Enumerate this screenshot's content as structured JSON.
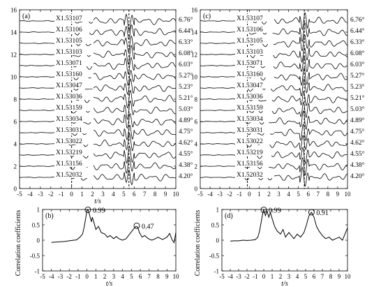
{
  "chart_data": [
    {
      "panel": "(a)",
      "type": "line",
      "xlabel": "t/s",
      "ylabel": "",
      "xlim": [
        -5,
        10
      ],
      "ylim": [
        0,
        16
      ],
      "xticks": [
        "-5",
        "-4",
        "-3",
        "-2",
        "-1",
        "0",
        "1",
        "2",
        "3",
        "4",
        "5",
        "6",
        "7",
        "8",
        "9",
        "10"
      ],
      "yticks": [
        "0",
        "2",
        "4",
        "6",
        "8",
        "10",
        "12",
        "14",
        "16"
      ],
      "vlines": [
        0,
        5.5
      ],
      "grid": false,
      "series": [
        {
          "name": "X1.53107",
          "offset": 15,
          "angle": "6.76°"
        },
        {
          "name": "X1.53106",
          "offset": 14,
          "angle": "6.44°"
        },
        {
          "name": "X1.53105",
          "offset": 13,
          "angle": "6.33°"
        },
        {
          "name": "X1.53103",
          "offset": 12,
          "angle": "6.08°"
        },
        {
          "name": "X1.53071",
          "offset": 11,
          "angle": "6.03°"
        },
        {
          "name": "X1.53160",
          "offset": 10,
          "angle": "5.27°"
        },
        {
          "name": "X1.53047",
          "offset": 9,
          "angle": "5.23°"
        },
        {
          "name": "X1.53036",
          "offset": 8,
          "angle": "5.21°"
        },
        {
          "name": "X1.53159",
          "offset": 7,
          "angle": "5.03°"
        },
        {
          "name": "X1.53034",
          "offset": 6,
          "angle": "4.89°"
        },
        {
          "name": "X1.53031",
          "offset": 5,
          "angle": "4.75°"
        },
        {
          "name": "X1.53022",
          "offset": 4,
          "angle": "4.62°"
        },
        {
          "name": "X1.53219",
          "offset": 3,
          "angle": "4.55°"
        },
        {
          "name": "X1.53156",
          "offset": 2,
          "angle": "4.38°"
        },
        {
          "name": "X1.52032",
          "offset": 1,
          "angle": "4.20°"
        }
      ]
    },
    {
      "panel": "(c)",
      "type": "line",
      "xlabel": "",
      "ylabel": "",
      "xlim": [
        -5,
        10
      ],
      "ylim": [
        0,
        16
      ],
      "xticks": [
        "-5",
        "-4",
        "-3",
        "-2",
        "-1",
        "0",
        "1",
        "2",
        "3",
        "4",
        "5",
        "6",
        "7",
        "8",
        "9",
        "10"
      ],
      "yticks": [
        "0",
        "2",
        "4",
        "6",
        "8",
        "10",
        "12",
        "14",
        "16"
      ],
      "vlines": [
        -0.2,
        5.6
      ],
      "grid": false,
      "series": [
        {
          "name": "X1.53107",
          "offset": 15,
          "angle": "6.76°"
        },
        {
          "name": "X1.53106",
          "offset": 14,
          "angle": "6.44°"
        },
        {
          "name": "X1.53105",
          "offset": 13,
          "angle": "6.33°"
        },
        {
          "name": "X1.53103",
          "offset": 12,
          "angle": "6.08°"
        },
        {
          "name": "X1.53071",
          "offset": 11,
          "angle": "6.03°"
        },
        {
          "name": "X1.53160",
          "offset": 10,
          "angle": "5.27°"
        },
        {
          "name": "X1.53047",
          "offset": 9,
          "angle": "5.23°"
        },
        {
          "name": "X1.53036",
          "offset": 8,
          "angle": "5.21°"
        },
        {
          "name": "X1.53159",
          "offset": 7,
          "angle": "5.03°"
        },
        {
          "name": "X1.53034",
          "offset": 6,
          "angle": "4.89°"
        },
        {
          "name": "X1.53031",
          "offset": 5,
          "angle": "4.75°"
        },
        {
          "name": "X1.53022",
          "offset": 4,
          "angle": "4.62°"
        },
        {
          "name": "X1.53219",
          "offset": 3,
          "angle": "4.55°"
        },
        {
          "name": "X1.53156",
          "offset": 2,
          "angle": "4.38°"
        },
        {
          "name": "X1.52032",
          "offset": 1,
          "angle": "4.20°"
        }
      ]
    },
    {
      "panel": "(b)",
      "type": "line",
      "xlabel": "t/s",
      "ylabel": "Correlation coefficients",
      "xlim": [
        -5,
        10
      ],
      "ylim": [
        -1,
        1
      ],
      "xticks": [
        "-5",
        "-4",
        "-3",
        "-2",
        "-1",
        "0",
        "1",
        "2",
        "3",
        "4",
        "5",
        "6",
        "7",
        "8",
        "9",
        "10"
      ],
      "yticks": [
        "-1",
        "-0.5",
        "0",
        "0.5",
        "1"
      ],
      "grid": false,
      "x": [
        -4.0,
        -3.5,
        -3.0,
        -2.5,
        -2.0,
        -1.5,
        -1.2,
        -1.0,
        -0.8,
        -0.5,
        -0.3,
        -0.1,
        0.0,
        0.1,
        0.2,
        0.4,
        0.5,
        0.6,
        0.8,
        1.0,
        1.3,
        1.6,
        2.0,
        2.3,
        2.6,
        3.0,
        3.3,
        3.6,
        4.0,
        4.4,
        4.8,
        5.2,
        5.5,
        5.7,
        5.9,
        6.2,
        6.5,
        6.9,
        7.3,
        7.7,
        8.0,
        8.5,
        9.0,
        9.3,
        9.6,
        9.8,
        10.0
      ],
      "values": [
        -0.07,
        -0.06,
        -0.05,
        -0.04,
        -0.02,
        -0.0,
        0.01,
        0.05,
        0.1,
        0.2,
        0.45,
        0.8,
        0.97,
        0.99,
        0.92,
        0.7,
        0.6,
        0.75,
        0.55,
        0.35,
        0.45,
        0.25,
        0.2,
        0.1,
        0.15,
        0.05,
        0.12,
        0.05,
        0.0,
        0.05,
        0.2,
        0.35,
        0.45,
        0.43,
        0.25,
        0.1,
        0.15,
        0.05,
        0.0,
        0.05,
        0.1,
        0.02,
        0.1,
        0.22,
        0.0,
        -0.08,
        0.25
      ],
      "annotations": [
        {
          "x": 0.1,
          "y": 0.99,
          "text": "0.99"
        },
        {
          "x": 5.6,
          "y": 0.47,
          "text": "0.47"
        }
      ]
    },
    {
      "panel": "(d)",
      "type": "line",
      "xlabel": "t/s",
      "ylabel": "Correlation coefficients",
      "xlim": [
        -5,
        10
      ],
      "ylim": [
        -1,
        1
      ],
      "xticks": [
        "-5",
        "-4",
        "-3",
        "-2",
        "-1",
        "0",
        "1",
        "2",
        "3",
        "4",
        "5",
        "6",
        "7",
        "8",
        "9",
        "10"
      ],
      "yticks": [
        "-1",
        "-0.5",
        "0",
        "0.5",
        "1"
      ],
      "grid": false,
      "x": [
        -4.0,
        -3.5,
        -3.0,
        -2.5,
        -2.0,
        -1.5,
        -1.0,
        -0.7,
        -0.5,
        -0.3,
        -0.1,
        0.0,
        0.2,
        0.4,
        0.6,
        0.8,
        1.0,
        1.3,
        1.6,
        2.0,
        2.3,
        2.6,
        3.0,
        3.3,
        3.6,
        4.0,
        4.4,
        4.8,
        5.1,
        5.4,
        5.7,
        6.0,
        6.3,
        6.6,
        7.0,
        7.4,
        7.8,
        8.2,
        8.6,
        9.0,
        9.4,
        9.7,
        10.0
      ],
      "values": [
        -0.03,
        -0.02,
        -0.02,
        0.0,
        -0.01,
        0.0,
        0.02,
        0.1,
        0.3,
        0.6,
        0.9,
        0.99,
        0.8,
        0.95,
        0.75,
        0.9,
        0.7,
        0.45,
        0.3,
        0.2,
        0.35,
        0.1,
        0.25,
        0.15,
        0.05,
        0.2,
        0.1,
        0.25,
        0.5,
        0.8,
        0.91,
        0.75,
        0.45,
        0.3,
        0.15,
        0.05,
        0.1,
        0.0,
        0.05,
        0.1,
        0.0,
        0.2,
        0.4
      ],
      "annotations": [
        {
          "x": 0.0,
          "y": 0.99,
          "text": "0.99"
        },
        {
          "x": 5.7,
          "y": 0.91,
          "text": "0.91"
        }
      ]
    }
  ]
}
